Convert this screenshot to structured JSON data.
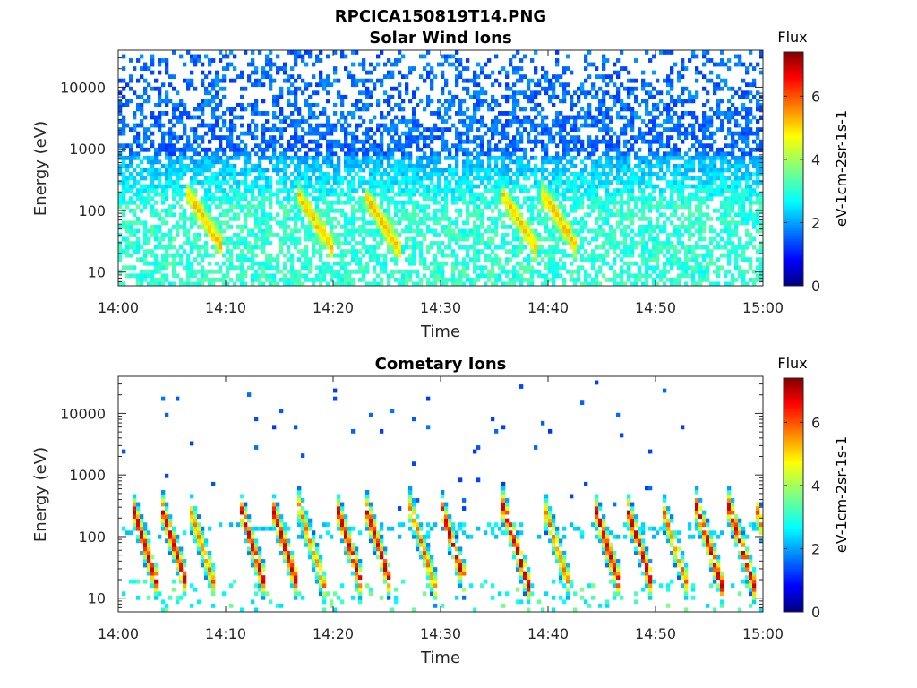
{
  "figure_title": "RPCICA150819T14.PNG",
  "chart_data": [
    {
      "type": "heatmap",
      "title": "Solar Wind Ions",
      "xlabel": "Time",
      "ylabel": "Energy (eV)",
      "x_ticks": [
        "14:00",
        "14:10",
        "14:20",
        "14:30",
        "14:40",
        "14:50",
        "15:00"
      ],
      "xlim": [
        "14:00",
        "15:00"
      ],
      "y_scale": "log",
      "y_ticks": [
        10,
        100,
        1000,
        10000
      ],
      "y_tick_labels": [
        "10",
        "100",
        "1000",
        "10000"
      ],
      "ylim": [
        6,
        40000
      ],
      "colorbar": {
        "title": "Flux",
        "label": "eV-1cm-2sr-1s-1",
        "ticks": [
          "0",
          "2",
          "4",
          "6"
        ],
        "range": [
          0,
          7.4
        ],
        "colormap": "jet"
      },
      "dispersion_events_minutes": [
        6.8,
        17,
        23.2,
        36,
        39.8
      ],
      "description_values": {
        "background_high_energy_flux": 1.5,
        "low_energy_band_flux": 3.2,
        "event_peak_flux": 4.8
      }
    },
    {
      "type": "heatmap",
      "title": "Cometary Ions",
      "xlabel": "Time",
      "ylabel": "Energy (eV)",
      "x_ticks": [
        "14:00",
        "14:10",
        "14:20",
        "14:30",
        "14:40",
        "14:50",
        "15:00"
      ],
      "xlim": [
        "14:00",
        "15:00"
      ],
      "y_scale": "log",
      "y_ticks": [
        10,
        100,
        1000,
        10000
      ],
      "y_tick_labels": [
        "10",
        "100",
        "1000",
        "10000"
      ],
      "ylim": [
        6,
        40000
      ],
      "colorbar": {
        "title": "Flux",
        "label": "eV-1cm-2sr-1s-1",
        "ticks": [
          "0",
          "2",
          "4",
          "6"
        ],
        "range": [
          0,
          7.4
        ],
        "colormap": "jet"
      },
      "dispersion_events_minutes": [
        1.5,
        4.2,
        6.8,
        11.5,
        14.5,
        17,
        20.5,
        23.2,
        27.3,
        30.2,
        36,
        39.8,
        44.5,
        47.5,
        50.8,
        54,
        57,
        59.5
      ],
      "description_values": {
        "event_peak_flux": 6.8,
        "band_energy_eV": [
          10,
          100
        ]
      }
    }
  ]
}
